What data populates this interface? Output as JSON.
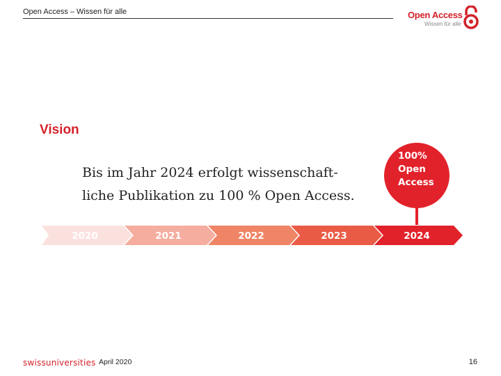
{
  "header": {
    "title": "Open Access – Wissen für alle"
  },
  "logo": {
    "title": "Open Access",
    "subtitle": "Wissen für alle",
    "icon": "open-access-lock-icon"
  },
  "slide": {
    "heading": "Vision",
    "statement_line1": "Bis im Jahr 2024 erfolgt wissenschaft-",
    "statement_line2": "liche Publikation zu 100 % Open Access.",
    "goal_line1": "100%",
    "goal_line2": "Open",
    "goal_line3": "Access",
    "timeline": [
      "2020",
      "2021",
      "2022",
      "2023",
      "2024"
    ]
  },
  "footer": {
    "organization": "swissuniversities",
    "date": "April 2020",
    "page": "16"
  },
  "colors": {
    "accent": "#d4222a",
    "timeline": [
      "#fbe1de",
      "#f5ad9f",
      "#ef8566",
      "#ea5b46",
      "#e2222b"
    ]
  }
}
